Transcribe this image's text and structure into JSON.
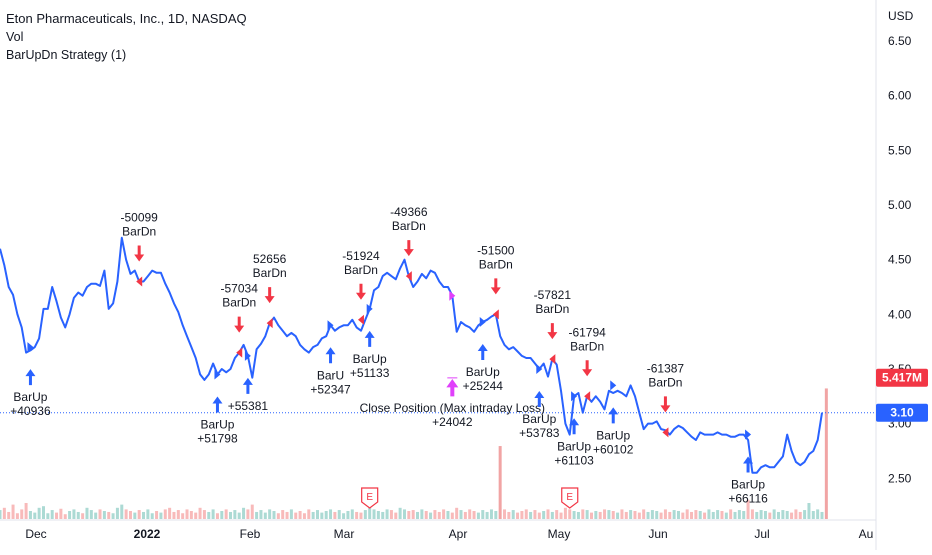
{
  "legend": {
    "title": "Eton Pharmaceuticals, Inc., 1D, NASDAQ",
    "indicator_vol": "Vol",
    "indicator_strategy": "BarUpDn Strategy (1)"
  },
  "currency": "USD",
  "colors": {
    "line": "#2962ff",
    "buy": "#2962ff",
    "sell": "#f23645",
    "close": "#e040fb",
    "volume_up": "#a3d6cf",
    "volume_down": "#f7b3b3",
    "volume_spike": "#ef9a9a",
    "price_badge": "#2962ff",
    "volume_badge": "#f23645",
    "earnings": "#f23645"
  },
  "price_label": "3.10",
  "volume_label": "5.417M",
  "earnings_marker": "E",
  "chart_data": {
    "type": "line",
    "title": "Eton Pharmaceuticals, Inc., 1D, NASDAQ",
    "ylabel": "USD",
    "ylim": [
      2.1,
      6.83
    ],
    "grid": false,
    "x_ticks": [
      "Dec",
      "2022",
      "Feb",
      "Mar",
      "Apr",
      "May",
      "Jun",
      "Jul",
      "Au"
    ],
    "y_ticks": [
      "2.50",
      "3.00",
      "3.50",
      "4.00",
      "4.50",
      "5.00",
      "5.50",
      "6.00",
      "6.50"
    ],
    "series": [
      {
        "values": [
          4.6,
          4.45,
          4.25,
          4.18,
          4.0,
          3.88,
          3.65,
          3.67,
          3.7,
          3.78,
          4.05,
          4.05,
          4.25,
          4.12,
          3.97,
          3.88,
          4.0,
          4.15,
          4.2,
          4.17,
          4.25,
          4.28,
          4.28,
          4.26,
          4.4,
          4.05,
          4.1,
          4.3,
          4.7,
          4.5,
          4.37,
          4.4,
          4.3,
          4.3,
          4.35,
          4.4,
          4.38,
          4.38,
          4.28,
          4.2,
          4.1,
          4.02,
          3.9,
          3.8,
          3.7,
          3.6,
          3.45,
          3.4,
          3.45,
          3.55,
          3.45,
          3.5,
          3.47,
          3.5,
          3.6,
          3.65,
          3.72,
          3.62,
          3.42,
          3.68,
          3.73,
          3.8,
          3.92,
          3.97,
          3.9,
          3.85,
          3.8,
          3.83,
          3.8,
          3.72,
          3.68,
          3.65,
          3.7,
          3.72,
          3.78,
          3.8,
          3.9,
          3.85,
          3.88,
          3.9,
          3.9,
          3.95,
          3.88,
          3.85,
          3.95,
          4.05,
          4.22,
          4.25,
          4.35,
          4.38,
          4.35,
          4.32,
          4.42,
          4.5,
          4.35,
          4.25,
          4.3,
          4.37,
          4.33,
          4.4,
          4.38,
          4.3,
          4.25,
          4.25,
          4.17,
          3.84,
          3.93,
          3.9,
          3.88,
          3.84,
          3.9,
          3.93,
          3.95,
          3.98,
          4.0,
          3.8,
          3.72,
          3.68,
          3.7,
          3.66,
          3.62,
          3.6,
          3.6,
          3.55,
          3.5,
          3.55,
          3.43,
          3.59,
          3.54,
          3.3,
          3.0,
          2.9,
          3.25,
          3.28,
          3.1,
          3.25,
          3.2,
          3.25,
          3.2,
          3.13,
          3.3,
          3.28,
          3.3,
          3.28,
          3.25,
          3.35,
          3.25,
          3.1,
          2.95,
          3.0,
          3.0,
          3.02,
          2.95,
          2.94,
          2.9,
          2.95,
          2.98,
          2.96,
          2.92,
          2.88,
          2.85,
          2.92,
          2.9,
          2.9,
          2.9,
          2.92,
          2.9,
          2.9,
          2.88,
          2.88,
          2.9,
          2.9,
          2.85,
          2.55,
          2.55,
          2.6,
          2.62,
          2.6,
          2.6,
          2.65,
          2.7,
          2.9,
          2.75,
          2.65,
          2.62,
          2.65,
          2.72,
          2.75,
          2.85,
          3.1
        ]
      }
    ],
    "volume_relative": [
      0.28,
      0.35,
      0.22,
      0.45,
      0.18,
      0.3,
      0.5,
      0.25,
      0.2,
      0.35,
      0.4,
      0.18,
      0.28,
      0.2,
      0.32,
      0.15,
      0.25,
      0.3,
      0.22,
      0.18,
      0.35,
      0.28,
      0.2,
      0.3,
      0.25,
      0.22,
      0.18,
      0.35,
      0.45,
      0.3,
      0.25,
      0.2,
      0.28,
      0.22,
      0.3,
      0.18,
      0.25,
      0.2,
      0.3,
      0.35,
      0.22,
      0.28,
      0.18,
      0.3,
      0.25,
      0.2,
      0.35,
      0.28,
      0.22,
      0.3,
      0.18,
      0.25,
      0.3,
      0.22,
      0.28,
      0.2,
      0.35,
      0.3,
      0.45,
      0.22,
      0.28,
      0.2,
      0.3,
      0.25,
      0.18,
      0.28,
      0.22,
      0.3,
      0.2,
      0.25,
      0.18,
      0.3,
      0.22,
      0.28,
      0.2,
      0.25,
      0.3,
      0.22,
      0.28,
      0.18,
      0.25,
      0.3,
      0.22,
      0.2,
      0.28,
      0.35,
      0.3,
      0.25,
      0.22,
      0.3,
      0.28,
      0.2,
      0.35,
      0.3,
      0.25,
      0.28,
      0.22,
      0.3,
      0.25,
      0.2,
      0.28,
      0.22,
      0.3,
      0.25,
      0.2,
      0.35,
      0.28,
      0.22,
      0.3,
      0.25,
      0.2,
      0.28,
      0.22,
      0.3,
      0.25,
      2.28,
      0.3,
      0.22,
      0.28,
      0.2,
      0.25,
      0.3,
      0.22,
      0.28,
      0.2,
      0.25,
      0.3,
      0.22,
      0.28,
      0.2,
      0.35,
      0.3,
      0.25,
      0.22,
      0.3,
      0.28,
      0.2,
      0.25,
      0.22,
      0.3,
      0.28,
      0.25,
      0.2,
      0.3,
      0.22,
      0.28,
      0.25,
      0.2,
      0.3,
      0.22,
      0.28,
      0.25,
      0.2,
      0.3,
      0.22,
      0.28,
      0.25,
      0.2,
      0.3,
      0.22,
      0.28,
      0.25,
      0.2,
      0.3,
      0.22,
      0.28,
      0.25,
      0.2,
      0.3,
      0.22,
      0.28,
      0.25,
      0.6,
      0.3,
      0.22,
      0.28,
      0.25,
      0.2,
      0.3,
      0.22,
      0.28,
      0.25,
      0.2,
      0.3,
      0.22,
      0.28,
      0.5,
      0.25,
      0.3,
      0.22,
      4.08
    ],
    "signals": [
      {
        "type": "buy",
        "index": 7,
        "price": 3.7,
        "text": "BarUp\n+40936"
      },
      {
        "type": "sell",
        "index": 32,
        "price": 4.3,
        "text": "-50099\nBarDn"
      },
      {
        "type": "buy",
        "index": 50,
        "price": 3.45,
        "text": "BarUp\n+51798"
      },
      {
        "type": "sell",
        "index": 55,
        "price": 3.65,
        "text": "-57034\nBarDn"
      },
      {
        "type": "buy",
        "index": 57,
        "price": 3.62,
        "text": "+55381"
      },
      {
        "type": "sell",
        "index": 62,
        "price": 3.92,
        "text": "52656\nBarDn"
      },
      {
        "type": "buy",
        "index": 76,
        "price": 3.9,
        "text": "BarU\n+52347"
      },
      {
        "type": "sell",
        "index": 83,
        "price": 3.95,
        "text": "-51924\nBarDn"
      },
      {
        "type": "buy",
        "index": 85,
        "price": 4.05,
        "text": "BarUp\n+51133"
      },
      {
        "type": "sell",
        "index": 94,
        "price": 4.35,
        "text": "-49366\nBarDn"
      },
      {
        "type": "close",
        "index": 104,
        "price": 4.17,
        "text": "Close Position (Max intraday Loss)\n+24042"
      },
      {
        "type": "buy",
        "index": 111,
        "price": 3.93,
        "text": "BarUp\n+25244"
      },
      {
        "type": "sell",
        "index": 114,
        "price": 4.0,
        "text": "-51500\nBarDn"
      },
      {
        "type": "buy",
        "index": 124,
        "price": 3.5,
        "text": "BarUp\n+53783"
      },
      {
        "type": "sell",
        "index": 127,
        "price": 3.59,
        "text": "-57821\nBarDn"
      },
      {
        "type": "buy",
        "index": 132,
        "price": 3.25,
        "text": "BarUp\n+61103"
      },
      {
        "type": "sell",
        "index": 135,
        "price": 3.25,
        "text": "-61794\nBarDn"
      },
      {
        "type": "buy",
        "index": 141,
        "price": 3.35,
        "text": "BarUp\n+60102"
      },
      {
        "type": "sell",
        "index": 153,
        "price": 2.92,
        "text": "-61387\nBarDn"
      },
      {
        "type": "buy",
        "index": 172,
        "price": 2.9,
        "text": "BarUp\n+66116"
      }
    ],
    "earnings_index": [
      85,
      131
    ]
  }
}
